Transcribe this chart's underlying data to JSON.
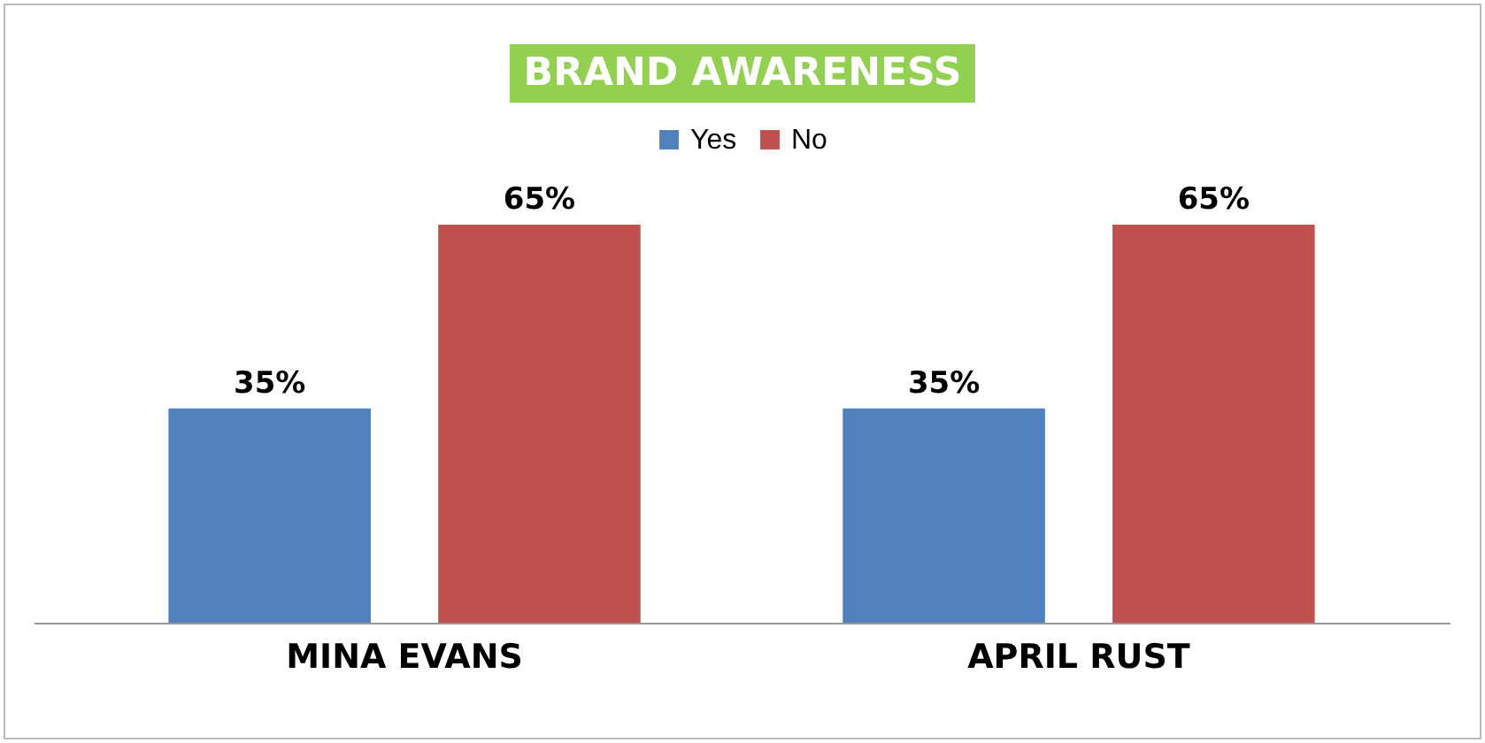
{
  "chart_data": {
    "type": "bar",
    "title": "BRAND AWARENESS",
    "categories": [
      "MINA EVANS",
      "APRIL RUST"
    ],
    "series": [
      {
        "name": "Yes",
        "color": "#4f81bd",
        "values": [
          35,
          35
        ],
        "value_labels": [
          "35%",
          "35%"
        ]
      },
      {
        "name": "No",
        "color": "#c0504d",
        "values": [
          65,
          65
        ],
        "value_labels": [
          "65%",
          "65%"
        ]
      }
    ],
    "legend": "top",
    "grid": false,
    "tick_labels": "x"
  }
}
